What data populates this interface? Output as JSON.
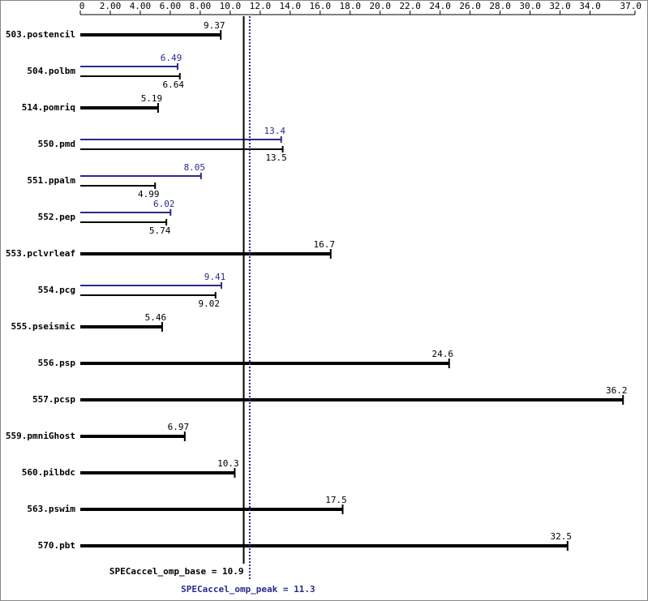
{
  "chart_data": {
    "type": "bar",
    "categories": [
      "503.postencil",
      "504.polbm",
      "514.pomriq",
      "550.pmd",
      "551.ppalm",
      "552.pep",
      "553.pclvrleaf",
      "554.pcg",
      "555.pseismic",
      "556.psp",
      "557.pcsp",
      "559.pmniGhost",
      "560.pilbdc",
      "563.pswim",
      "570.pbt"
    ],
    "series": [
      {
        "color": "#000000",
        "values": [
          9.37,
          6.64,
          5.19,
          13.5,
          4.99,
          5.74,
          16.7,
          9.02,
          5.46,
          24.6,
          36.2,
          6.97,
          10.3,
          17.5,
          32.5
        ]
      },
      {
        "color": "#2a2a8c",
        "values": [
          null,
          6.49,
          null,
          13.4,
          8.05,
          6.02,
          null,
          9.41,
          null,
          null,
          null,
          null,
          null,
          null,
          null
        ]
      }
    ],
    "xlim": [
      0,
      37
    ],
    "xticks": [
      0,
      {
        "value": 2,
        "label": "2.00"
      },
      {
        "value": 4,
        "label": "4.00"
      },
      {
        "value": 6,
        "label": "6.00"
      },
      {
        "value": 8,
        "label": "8.00"
      },
      {
        "value": 10,
        "label": "10.0"
      },
      {
        "value": 12,
        "label": "12.0"
      },
      {
        "value": 14,
        "label": "14.0"
      },
      {
        "value": 16,
        "label": "16.0"
      },
      {
        "value": 18,
        "label": "18.0"
      },
      {
        "value": 20,
        "label": "20.0"
      },
      {
        "value": 22,
        "label": "22.0"
      },
      {
        "value": 24,
        "label": "24.0"
      },
      {
        "value": 26,
        "label": "26.0"
      },
      {
        "value": 28,
        "label": "28.0"
      },
      {
        "value": 30,
        "label": "30.0"
      },
      {
        "value": 32,
        "label": "32.0"
      },
      {
        "value": 34,
        "label": "34.0"
      },
      {
        "value": 37,
        "label": "37.0"
      }
    ],
    "reference_lines": [
      {
        "label": "SPECaccel_omp_base = 10.9",
        "value": 10.9,
        "color": "#000000"
      },
      {
        "label": "SPECaccel_omp_peak = 11.3",
        "value": 11.3,
        "color": "#2a2a8c"
      }
    ]
  }
}
